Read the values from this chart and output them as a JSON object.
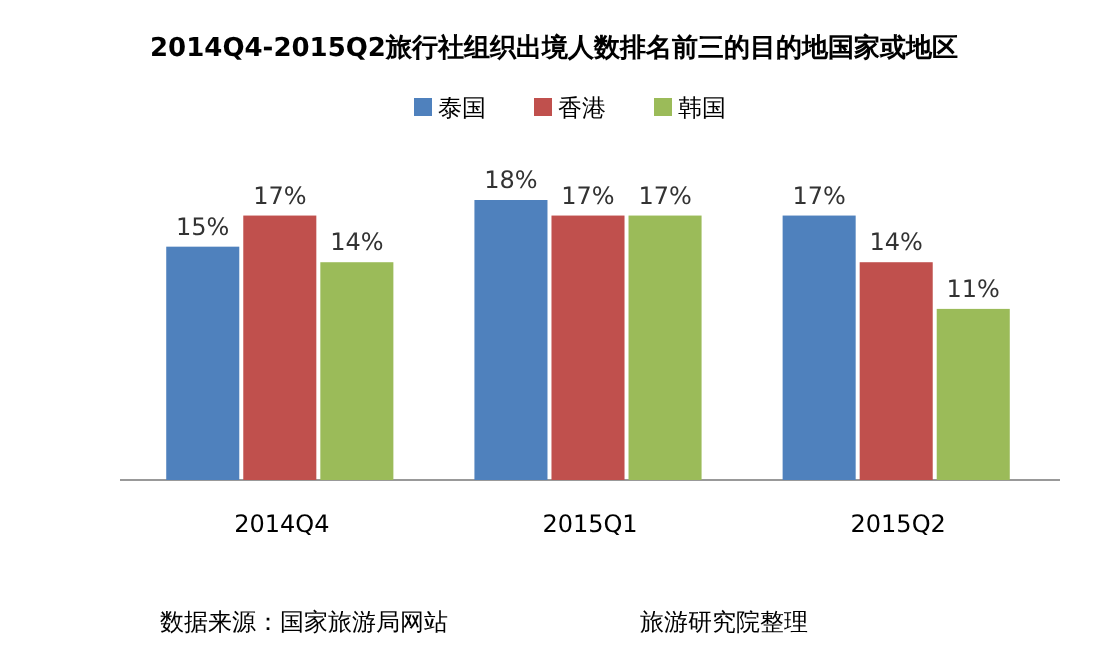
{
  "chart_data": {
    "type": "bar",
    "title": "2014Q4-2015Q2旅行社组织出境人数排名前三的目的地国家或地区",
    "categories": [
      "2014Q4",
      "2015Q1",
      "2015Q2"
    ],
    "series": [
      {
        "name": "泰国",
        "color": "#4f81bd",
        "values": [
          15,
          18,
          17
        ],
        "value_labels": [
          "15%",
          "18%",
          "17%"
        ]
      },
      {
        "name": "香港",
        "color": "#c0504d",
        "values": [
          17,
          17,
          14
        ],
        "value_labels": [
          "17%",
          "17%",
          "14%"
        ]
      },
      {
        "name": "韩国",
        "color": "#9bbb59",
        "values": [
          14,
          17,
          11
        ],
        "value_labels": [
          "14%",
          "17%",
          "11%"
        ]
      }
    ],
    "legend": "top",
    "annotations": [
      "数据来源：国家旅游局网站",
      "旅游研究院整理"
    ]
  }
}
